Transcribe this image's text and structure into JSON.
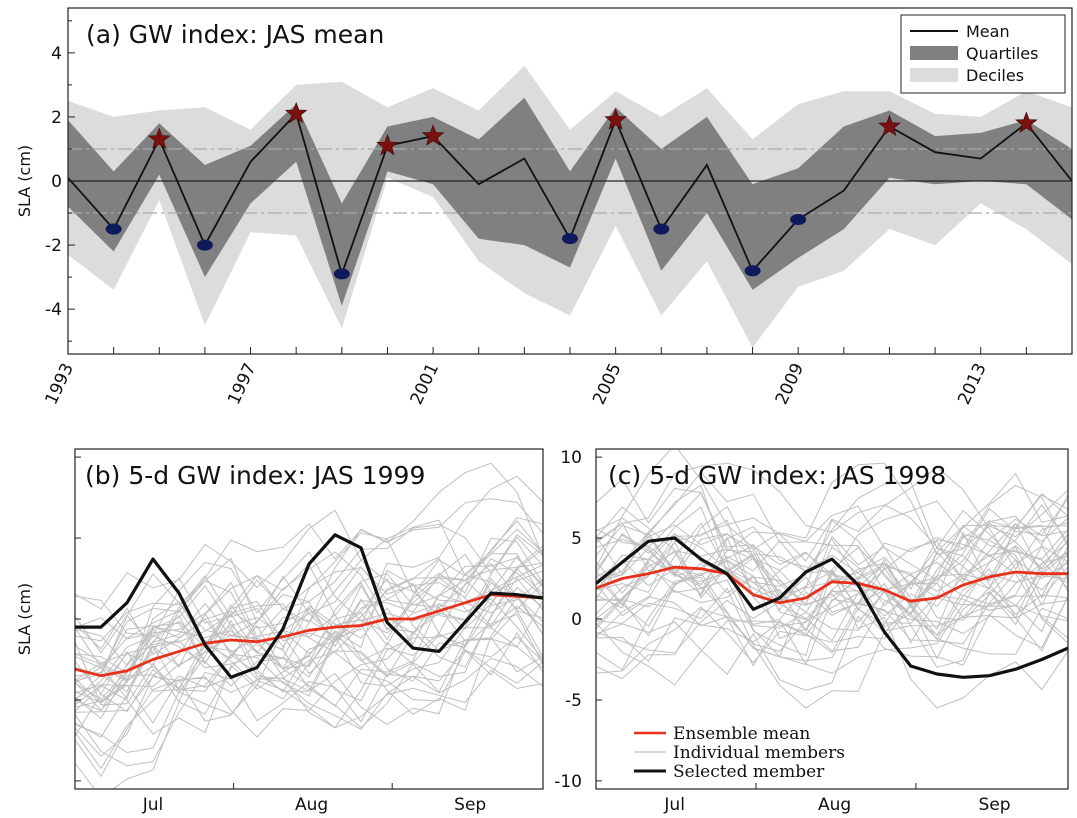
{
  "chart_data": [
    {
      "panel": "a",
      "type": "area",
      "title": "(a) GW index: JAS mean",
      "ylabel": "SLA (cm)",
      "ylim": [
        -5.4,
        5.4
      ],
      "yticks": [
        4,
        2,
        0,
        -2,
        -4
      ],
      "xlim": [
        1993,
        2015
      ],
      "xticks": [
        "1993",
        "1997",
        "2001",
        "2005",
        "2009",
        "2013"
      ],
      "reference_lines": [
        1.0,
        -1.0
      ],
      "x": [
        1993,
        1994,
        1995,
        1996,
        1997,
        1998,
        1999,
        2000,
        2001,
        2002,
        2003,
        2004,
        2005,
        2006,
        2007,
        2008,
        2009,
        2010,
        2011,
        2012,
        2013,
        2014,
        2015
      ],
      "series": [
        {
          "name": "Mean",
          "values": [
            0.1,
            -1.5,
            1.3,
            -2.0,
            0.6,
            2.1,
            -2.9,
            1.1,
            1.4,
            -0.1,
            0.7,
            -1.8,
            1.9,
            -1.5,
            0.5,
            -2.8,
            -1.2,
            -0.3,
            1.7,
            0.9,
            0.7,
            1.8,
            0.0
          ]
        },
        {
          "name": "Quartiles",
          "upper": [
            1.9,
            0.3,
            1.8,
            0.5,
            1.1,
            2.4,
            -0.7,
            1.7,
            2.0,
            1.3,
            2.6,
            0.3,
            2.3,
            1.0,
            2.0,
            -0.1,
            0.4,
            1.7,
            2.2,
            1.4,
            1.5,
            1.9,
            1.0
          ],
          "lower": [
            -0.8,
            -2.2,
            0.2,
            -3.0,
            -0.7,
            0.6,
            -3.9,
            0.3,
            -0.1,
            -1.8,
            -2.0,
            -2.7,
            0.7,
            -2.8,
            -1.0,
            -3.4,
            -2.4,
            -1.5,
            0.1,
            -0.1,
            0.0,
            -0.1,
            -1.2
          ]
        },
        {
          "name": "Deciles",
          "upper": [
            2.5,
            2.0,
            2.2,
            2.3,
            1.6,
            3.0,
            3.1,
            2.3,
            2.9,
            2.2,
            3.6,
            1.6,
            2.8,
            2.0,
            2.9,
            1.3,
            2.4,
            2.8,
            2.8,
            2.1,
            2.0,
            2.8,
            2.3
          ],
          "lower": [
            -2.3,
            -3.4,
            -0.6,
            -4.5,
            -1.6,
            -1.7,
            -4.6,
            0.1,
            -0.5,
            -2.5,
            -3.5,
            -4.2,
            -1.4,
            -4.2,
            -2.5,
            -5.2,
            -3.3,
            -2.8,
            -1.5,
            -2.0,
            -0.7,
            -1.5,
            -2.6
          ]
        }
      ],
      "positive_years": [
        1995,
        1998,
        2000,
        2001,
        2005,
        2011,
        2014
      ],
      "negative_years": [
        1994,
        1996,
        1999,
        2004,
        2006,
        2008,
        2009
      ],
      "legend": [
        "Mean",
        "Quartiles",
        "Deciles"
      ],
      "legend_position": "top-right",
      "colors": {
        "mean": "#111111",
        "quartiles": "#808080",
        "deciles": "#dcdcdc",
        "star": "#7a1010",
        "dot": "#0f1a5c",
        "refline": "#aaaaaa"
      }
    },
    {
      "panel": "b",
      "type": "line",
      "title": "(b) 5-d GW index: JAS 1999",
      "ylabel": "SLA (cm)",
      "ylim": [
        -10.5,
        10.5
      ],
      "xlim": [
        0,
        18
      ],
      "xticks": [
        {
          "label": "Jul",
          "x": 3
        },
        {
          "label": "Aug",
          "x": 9.1
        },
        {
          "label": "Sep",
          "x": 15.2
        }
      ],
      "series": [
        {
          "name": "Ensemble mean",
          "color": "#e8311a",
          "values": [
            -3.1,
            -3.5,
            -3.2,
            -2.5,
            -2.0,
            -1.5,
            -1.3,
            -1.4,
            -1.1,
            -0.7,
            -0.5,
            -0.4,
            0.0,
            0.0,
            0.5,
            1.0,
            1.5,
            1.4,
            1.3
          ]
        },
        {
          "name": "Selected member",
          "color": "#111111",
          "values": [
            -0.5,
            -0.5,
            1.0,
            3.7,
            1.6,
            -1.6,
            -3.6,
            -3.0,
            -0.6,
            3.4,
            5.2,
            4.4,
            -0.2,
            -1.8,
            -2.0,
            -0.2,
            1.6,
            1.5,
            1.3
          ]
        }
      ],
      "members": {
        "name": "Individual members",
        "color": "#bfbfbf",
        "count": 40
      }
    },
    {
      "panel": "c",
      "type": "line",
      "title": "(c) 5-d GW index: JAS 1998",
      "ylim": [
        -10.5,
        10.5
      ],
      "yticks": [
        10,
        5,
        0,
        -5,
        -10
      ],
      "xlim": [
        0,
        18
      ],
      "xticks": [
        {
          "label": "Jul",
          "x": 3
        },
        {
          "label": "Aug",
          "x": 9.1
        },
        {
          "label": "Sep",
          "x": 15.2
        }
      ],
      "series": [
        {
          "name": "Ensemble mean",
          "color": "#e8311a",
          "values": [
            1.9,
            2.5,
            2.8,
            3.2,
            3.1,
            2.8,
            1.5,
            1.0,
            1.3,
            2.3,
            2.2,
            1.8,
            1.1,
            1.3,
            2.1,
            2.6,
            2.9,
            2.8,
            2.8
          ]
        },
        {
          "name": "Selected member",
          "color": "#111111",
          "values": [
            2.2,
            3.5,
            4.8,
            5.0,
            3.7,
            2.8,
            0.6,
            1.3,
            2.9,
            3.7,
            2.1,
            -0.8,
            -2.9,
            -3.4,
            -3.6,
            -3.5,
            -3.1,
            -2.5,
            -1.8
          ]
        }
      ],
      "members": {
        "name": "Individual members",
        "color": "#bfbfbf",
        "count": 40
      },
      "legend": [
        "Ensemble mean",
        "Individual members",
        "Selected member"
      ],
      "legend_position": "bottom-left"
    }
  ]
}
